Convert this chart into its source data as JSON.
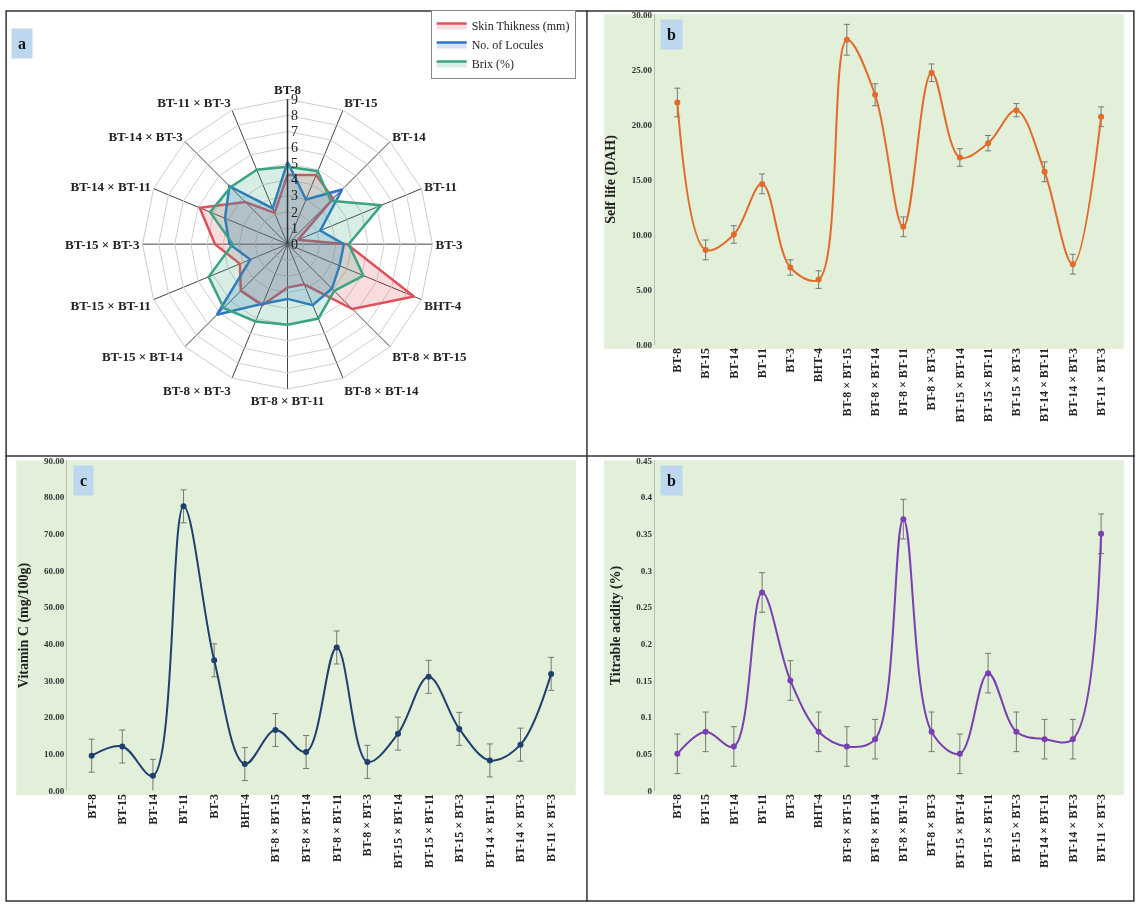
{
  "chart_data": [
    {
      "type": "radar",
      "annotations": [
        "a"
      ],
      "categories": [
        "BT-8",
        "BT-15",
        "BT-14",
        "BT-11",
        "BT-3",
        "BHT-4",
        "BT-8 × BT-15",
        "BT-8 × BT-14",
        "BT-8 × BT-11",
        "BT-8 × BT-3",
        "BT-15 × BT-14",
        "BT-15 × BT-11",
        "BT-15 × BT-3",
        "BT-14 × BT-11",
        "BT-14 × BT-3",
        "BT-11 × BT-3"
      ],
      "ylim": [
        0,
        9
      ],
      "yticks": [
        0,
        1,
        2,
        3,
        4,
        5,
        6,
        7,
        8,
        9
      ],
      "legend": "top right",
      "grid": true,
      "marker": "none",
      "series": [
        {
          "name": "Skin Thikness (mm)",
          "color": "#e0505a",
          "values": [
            4.3,
            4.65,
            4.0,
            0.7,
            3.7,
            8.5,
            5.7,
            2.7,
            2.7,
            4.1,
            4.1,
            3.2,
            4.5,
            5.9,
            3.7,
            2.1
          ]
        },
        {
          "name": "No. of Locules",
          "color": "#2e75c6",
          "values": [
            5.1,
            3.0,
            4.8,
            2.2,
            3.5,
            3.5,
            3.9,
            4.1,
            3.4,
            4.0,
            6.2,
            2.5,
            3.6,
            4.2,
            5.1,
            2.4
          ]
        },
        {
          "name": "Brix (%)",
          "color": "#3aa384",
          "values": [
            4.8,
            4.9,
            3.8,
            6.3,
            3.8,
            5.1,
            4.1,
            5.0,
            5.0,
            5.2,
            5.6,
            5.3,
            3.4,
            5.2,
            5.0,
            5.0
          ]
        }
      ]
    },
    {
      "type": "line",
      "annotations": [
        "b"
      ],
      "ylabel": "Self life (DAH)",
      "categories": [
        "BT-8",
        "BT-15",
        "BT-14",
        "BT-11",
        "BT-3",
        "BHT-4",
        "BT-8 × BT-15",
        "BT-8 × BT-14",
        "BT-8 × BT-11",
        "BT-8 × BT-3",
        "BT-15 × BT-14",
        "BT-15 × BT-11",
        "BT-15 × BT-3",
        "BT-14 × BT-11",
        "BT-14 × BT-3",
        "BT-11 × BT-3"
      ],
      "ylim": [
        0,
        30
      ],
      "yticks": [
        {
          "value": 0,
          "label": "0.00"
        },
        {
          "value": 5,
          "label": "5.00"
        },
        {
          "value": 10,
          "label": "10.00"
        },
        {
          "value": 15,
          "label": "15.00"
        },
        {
          "value": 20,
          "label": "20.00"
        },
        {
          "value": 25,
          "label": "25.00"
        },
        {
          "value": 30,
          "label": "30.00"
        }
      ],
      "marker": "circle",
      "grid": false,
      "series": [
        {
          "color": "#e26b2a",
          "values": [
            22.0,
            8.6,
            10.0,
            14.6,
            7.0,
            5.9,
            27.7,
            22.7,
            10.7,
            24.7,
            17.0,
            18.3,
            21.3,
            15.7,
            7.3,
            20.7
          ],
          "errors": [
            1.3,
            0.9,
            0.8,
            0.9,
            0.7,
            0.8,
            1.4,
            1.0,
            0.9,
            0.8,
            0.8,
            0.7,
            0.6,
            0.9,
            0.9,
            0.9
          ]
        }
      ]
    },
    {
      "type": "line",
      "annotations": [
        "c"
      ],
      "ylabel": "Vitamin C (mg/100g)",
      "categories": [
        "BT-8",
        "BT-15",
        "BT-14",
        "BT-11",
        "BT-3",
        "BHT-4",
        "BT-8 × BT-15",
        "BT-8 × BT-14",
        "BT-8 × BT-11",
        "BT-8 × BT-3",
        "BT-15 × BT-14",
        "BT-15 × BT-11",
        "BT-15 × BT-3",
        "BT-14 × BT-11",
        "BT-14 × BT-3",
        "BT-11 × BT-3"
      ],
      "ylim": [
        0,
        90
      ],
      "yticks": [
        {
          "value": 0,
          "label": "0.00"
        },
        {
          "value": 10,
          "label": "10.00"
        },
        {
          "value": 20,
          "label": "20.00"
        },
        {
          "value": 30,
          "label": "30.00"
        },
        {
          "value": 40,
          "label": "40.00"
        },
        {
          "value": 50,
          "label": "50.00"
        },
        {
          "value": 60,
          "label": "60.00"
        },
        {
          "value": 70,
          "label": "70.00"
        },
        {
          "value": 80,
          "label": "80.00"
        },
        {
          "value": 90,
          "label": "90.00"
        }
      ],
      "marker": "circle",
      "grid": false,
      "series": [
        {
          "color": "#1f3f6e",
          "values": [
            9.5,
            12.0,
            4.0,
            77.5,
            35.5,
            7.2,
            16.5,
            10.5,
            39.0,
            7.8,
            15.5,
            31.0,
            16.8,
            8.2,
            12.5,
            31.8
          ],
          "errors": [
            4.5,
            4.5,
            4.5,
            4.5,
            4.5,
            4.5,
            4.5,
            4.5,
            4.5,
            4.5,
            4.5,
            4.5,
            4.5,
            4.5,
            4.5,
            4.5
          ]
        }
      ]
    },
    {
      "type": "line",
      "annotations": [
        "b"
      ],
      "ylabel": "Titrable acidity (%)",
      "categories": [
        "BT-8",
        "BT-15",
        "BT-14",
        "BT-11",
        "BT-3",
        "BHT-4",
        "BT-8 × BT-15",
        "BT-8 × BT-14",
        "BT-8 × BT-11",
        "BT-8 × BT-3",
        "BT-15 × BT-14",
        "BT-15 × BT-11",
        "BT-15 × BT-3",
        "BT-14 × BT-11",
        "BT-14 × BT-3",
        "BT-11 × BT-3"
      ],
      "ylim": [
        0,
        0.45
      ],
      "yticks": [
        0,
        0.05,
        0.1,
        0.15,
        0.2,
        0.25,
        0.3,
        0.35,
        0.4,
        0.45
      ],
      "marker": "circle",
      "grid": false,
      "series": [
        {
          "color": "#7a3fb0",
          "values": [
            0.05,
            0.08,
            0.06,
            0.27,
            0.15,
            0.08,
            0.06,
            0.07,
            0.37,
            0.08,
            0.05,
            0.16,
            0.08,
            0.07,
            0.07,
            0.35
          ],
          "errors": [
            0.027,
            0.027,
            0.027,
            0.027,
            0.027,
            0.027,
            0.027,
            0.027,
            0.027,
            0.027,
            0.027,
            0.027,
            0.027,
            0.027,
            0.027,
            0.027
          ]
        }
      ]
    }
  ]
}
